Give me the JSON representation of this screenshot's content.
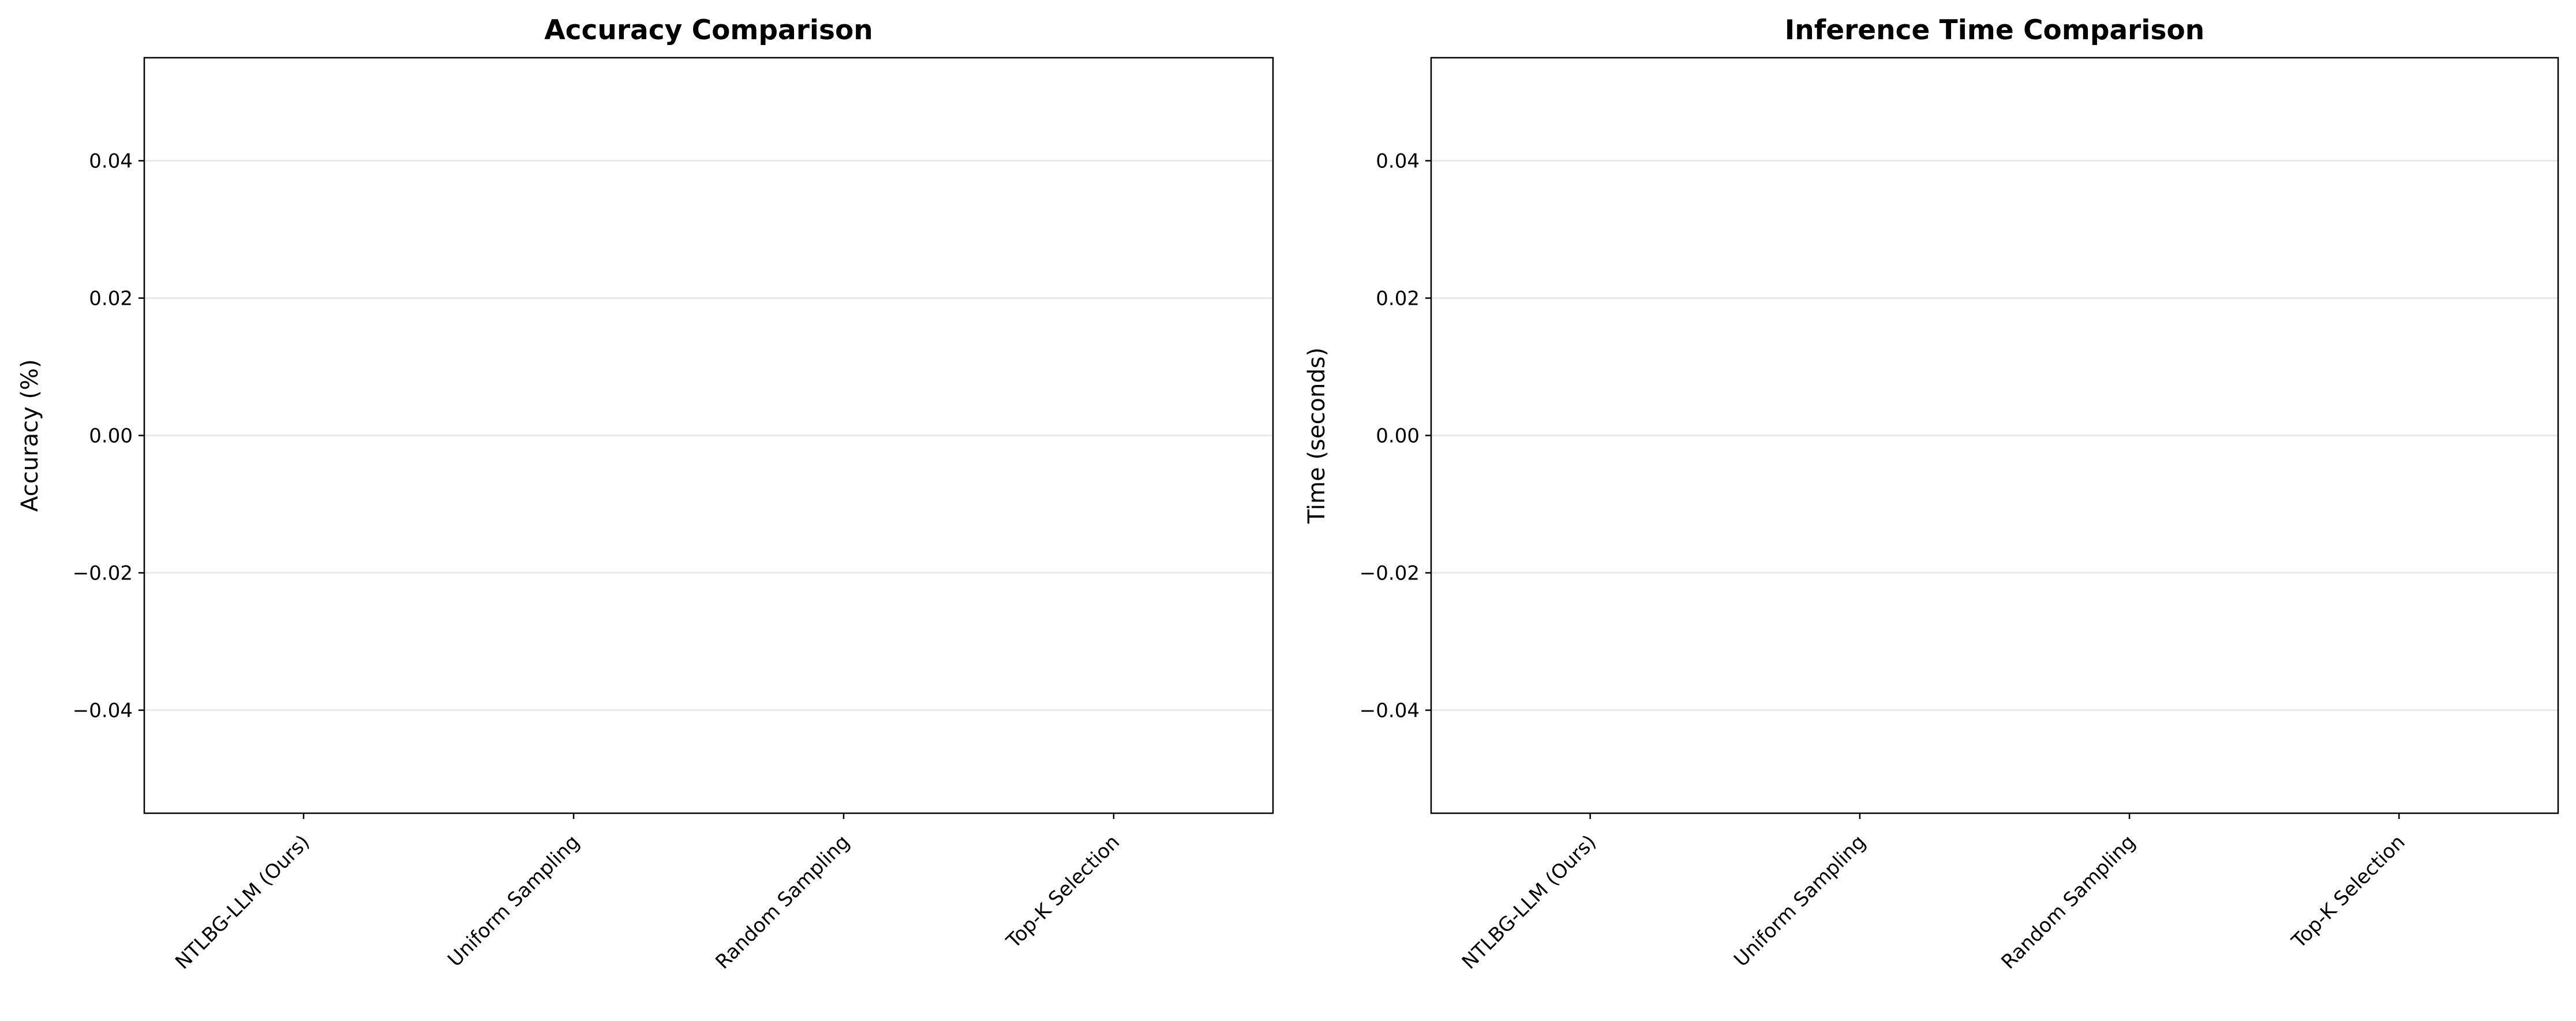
{
  "chart_data": [
    {
      "type": "bar",
      "title": "Accuracy Comparison",
      "y_label": "Accuracy (%)",
      "categories": [
        "NTLBG-LLM (Ours)",
        "Uniform Sampling",
        "Random Sampling",
        "Top-K Selection"
      ],
      "values": [
        0,
        0,
        0,
        0
      ],
      "color": "#1f77b4",
      "ylim": [
        -0.055,
        0.055
      ],
      "yticks": [
        {
          "value": -0.04,
          "label": "−0.04"
        },
        {
          "value": -0.02,
          "label": "−0.02"
        },
        {
          "value": 0,
          "label": "0.00"
        },
        0.02,
        0.04
      ],
      "grid": true
    },
    {
      "type": "bar",
      "title": "Inference Time Comparison",
      "y_label": "Time (seconds)",
      "categories": [
        "NTLBG-LLM (Ours)",
        "Uniform Sampling",
        "Random Sampling",
        "Top-K Selection"
      ],
      "values": [
        0,
        0,
        0,
        0
      ],
      "color": "#ff7f0e",
      "ylim": [
        -0.055,
        0.055
      ],
      "yticks": [
        {
          "value": -0.04,
          "label": "−0.04"
        },
        {
          "value": -0.02,
          "label": "−0.02"
        },
        {
          "value": 0,
          "label": "0.00"
        },
        0.02,
        0.04
      ],
      "grid": true
    }
  ]
}
